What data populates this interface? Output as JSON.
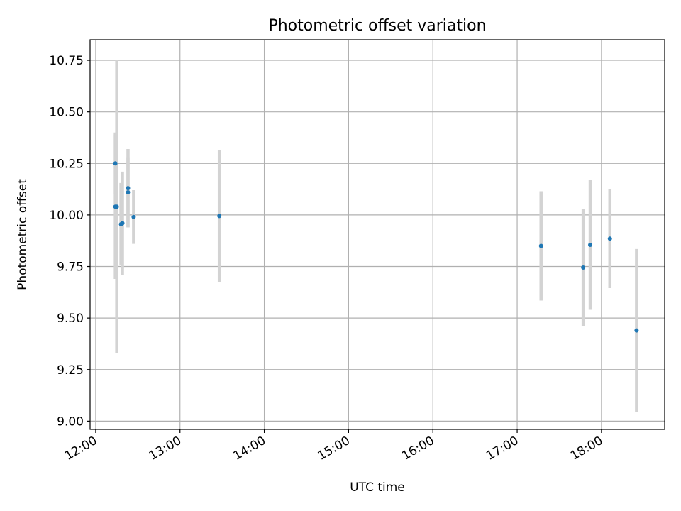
{
  "chart_data": {
    "type": "scatter",
    "title": "Photometric offset variation",
    "xlabel": "UTC time",
    "ylabel": "Photometric offset",
    "x_axis_kind": "time",
    "xlim": [
      "11:56",
      "18:45"
    ],
    "ylim": [
      8.96,
      10.85
    ],
    "xticks": [
      "12:00",
      "13:00",
      "14:00",
      "15:00",
      "16:00",
      "17:00",
      "18:00"
    ],
    "yticks": [
      9.0,
      9.25,
      9.5,
      9.75,
      10.0,
      10.25,
      10.5,
      10.75
    ],
    "ytick_labels": [
      "9.00",
      "9.25",
      "9.50",
      "9.75",
      "10.00",
      "10.25",
      "10.50",
      "10.75"
    ],
    "grid": true,
    "colors": {
      "points": "#1f77b4",
      "errorbars": "#d3d3d3",
      "grid": "#b0b0b0"
    },
    "series": [
      {
        "points": [
          {
            "time": "12:14",
            "y": 10.25,
            "err": 0.15
          },
          {
            "time": "12:14",
            "y": 10.04,
            "err": 0.35
          },
          {
            "time": "12:15",
            "y": 10.04,
            "err": 0.71
          },
          {
            "time": "12:18",
            "y": 9.955,
            "err": 0.2
          },
          {
            "time": "12:19",
            "y": 9.96,
            "err": 0.25
          },
          {
            "time": "12:23",
            "y": 10.11,
            "err": 0.17
          },
          {
            "time": "12:23",
            "y": 10.13,
            "err": 0.19
          },
          {
            "time": "12:27",
            "y": 9.99,
            "err": 0.13
          },
          {
            "time": "13:28",
            "y": 9.995,
            "err": 0.32
          },
          {
            "time": "17:17",
            "y": 9.85,
            "err": 0.265
          },
          {
            "time": "17:47",
            "y": 9.745,
            "err": 0.285
          },
          {
            "time": "17:52",
            "y": 9.855,
            "err": 0.315
          },
          {
            "time": "18:06",
            "y": 9.885,
            "err": 0.24
          },
          {
            "time": "18:25",
            "y": 9.44,
            "err": 0.395
          }
        ]
      }
    ]
  }
}
